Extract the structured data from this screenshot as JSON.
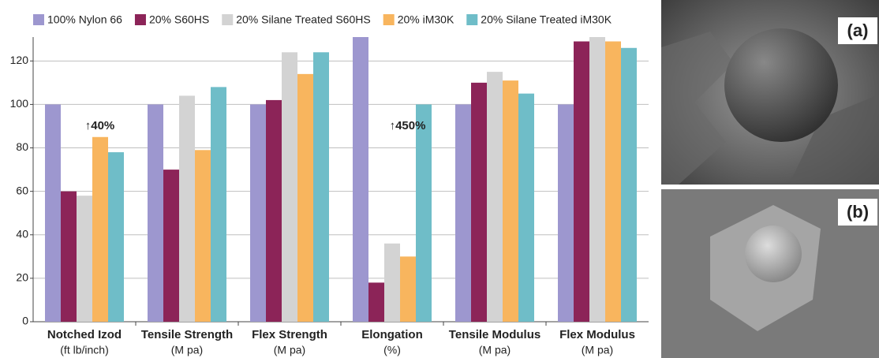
{
  "chart_data": {
    "type": "bar",
    "categories": [
      "Notched Izod",
      "Tensile Strength",
      "Flex Strength",
      "Elongation",
      "Tensile Modulus",
      "Flex Modulus"
    ],
    "category_units": [
      "(ft lb/inch)",
      "(M pa)",
      "(M pa)",
      "(%)",
      "(M pa)",
      "(M pa)"
    ],
    "series": [
      {
        "name": "100% Nylon 66",
        "color": "#9d97cf",
        "values": [
          100,
          100,
          100,
          131,
          100,
          100
        ]
      },
      {
        "name": "20% S60HS",
        "color": "#8c2458",
        "values": [
          60,
          70,
          102,
          18,
          110,
          129
        ]
      },
      {
        "name": "20% Silane Treated S60HS",
        "color": "#d3d3d3",
        "values": [
          58,
          104,
          124,
          36,
          115,
          131
        ]
      },
      {
        "name": "20% iM30K",
        "color": "#f8b55e",
        "values": [
          85,
          79,
          114,
          30,
          111,
          129
        ]
      },
      {
        "name": "20% Silane Treated iM30K",
        "color": "#6fbdc8",
        "values": [
          78,
          108,
          124,
          100,
          105,
          126
        ]
      }
    ],
    "ylim": [
      0,
      131
    ],
    "yticks": [
      0,
      20,
      40,
      60,
      80,
      100,
      120
    ],
    "grid": true,
    "annotations": [
      "↑40%",
      "↑450%"
    ]
  },
  "images": [
    {
      "label": "(a)"
    },
    {
      "label": "(b)"
    }
  ]
}
